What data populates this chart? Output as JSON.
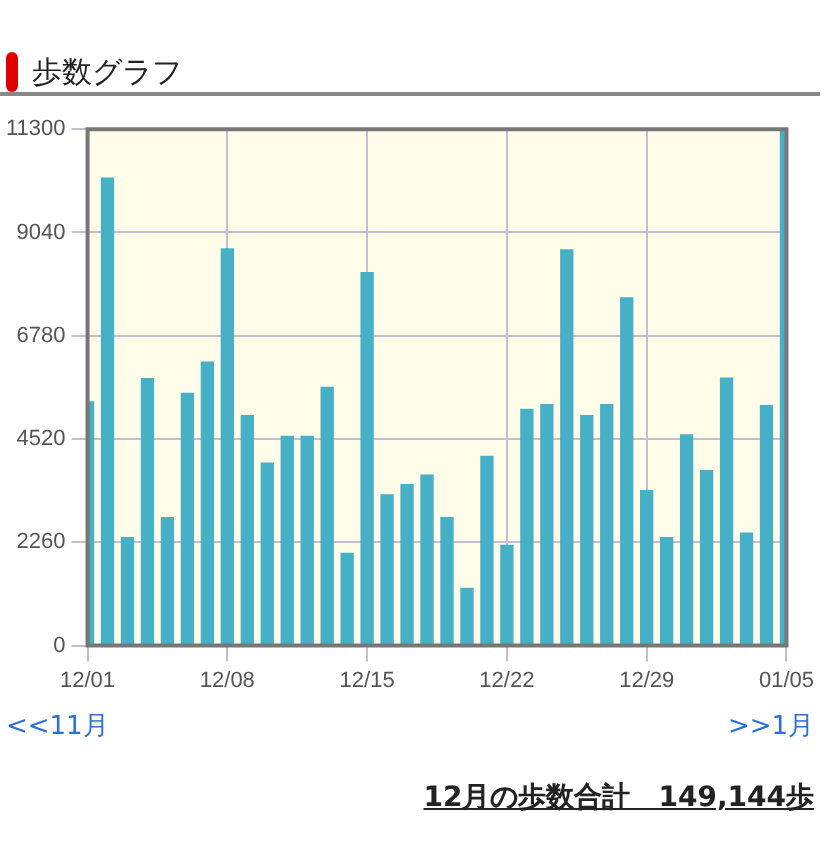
{
  "chart_data": {
    "type": "bar",
    "title": "歩数グラフ",
    "categories": [
      "12/01",
      null,
      null,
      null,
      null,
      null,
      null,
      "12/08",
      null,
      null,
      null,
      null,
      null,
      null,
      "12/15",
      null,
      null,
      null,
      null,
      null,
      null,
      "12/22",
      null,
      null,
      null,
      null,
      null,
      null,
      "12/29",
      null,
      null,
      null,
      null,
      null,
      null,
      "01/05"
    ],
    "values": [
      5330,
      10230,
      2360,
      5840,
      2800,
      5520,
      6200,
      8680,
      5030,
      3990,
      4580,
      4580,
      5650,
      2020,
      8160,
      3300,
      3520,
      3730,
      2800,
      1250,
      4140,
      2190,
      5170,
      5270,
      8660,
      5030,
      5270,
      7610,
      3390,
      2360,
      4610,
      3830,
      5850,
      2460,
      5250,
      11300
    ],
    "color": "#45b0c6",
    "ylim": [
      0,
      11300
    ],
    "yticks": [
      0,
      2260,
      4520,
      6780,
      9040,
      11300
    ],
    "grid": true,
    "annotations": [
      "<<11月",
      ">>1月",
      "12月の歩数合計　149,144歩"
    ]
  }
}
